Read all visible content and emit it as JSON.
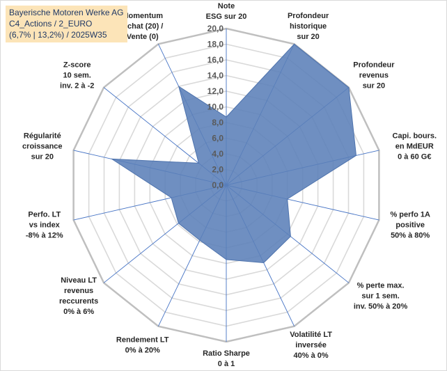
{
  "title_box": {
    "line1": "Bayerische Motoren Werke AG",
    "line2": "C4_Actions / 2_EURO",
    "line3": "(6,7% | 13,2%) / 2025W35"
  },
  "chart_data": {
    "type": "radar",
    "scale": {
      "min": 0,
      "max": 20,
      "step": 2
    },
    "tick_labels": [
      "0,0",
      "2,0",
      "4,0",
      "6,0",
      "8,0",
      "10,0",
      "12,0",
      "14,0",
      "16,0",
      "18,0",
      "20,0"
    ],
    "axes": [
      {
        "label": [
          "Note",
          "ESG sur 20"
        ],
        "value": 8.7
      },
      {
        "label": [
          "Profondeur",
          "historique",
          "sur 20"
        ],
        "value": 20.0
      },
      {
        "label": [
          "Profondeur",
          "revenus",
          "sur 20"
        ],
        "value": 20.0
      },
      {
        "label": [
          "Capi. bours.",
          "en MdEUR",
          "0 à 60 G€"
        ],
        "value": 17.0
      },
      {
        "label": [
          "% perfo 1A",
          "positive",
          "50% à 80%"
        ],
        "value": 8.0
      },
      {
        "label": [
          "% perte max.",
          "sur 1 sem.",
          "inv. 50% à 20%"
        ],
        "value": 10.5
      },
      {
        "label": [
          "Volatilité LT",
          "inversée",
          "40% à 0%"
        ],
        "value": 11.0
      },
      {
        "label": [
          "Ratio Sharpe",
          "0 à 1"
        ],
        "value": 9.5
      },
      {
        "label": [
          "Rendement LT",
          "0% à 20%"
        ],
        "value": 7.8
      },
      {
        "label": [
          "Niveau LT",
          "revenus",
          "reccurents",
          "0% à 6%"
        ],
        "value": 7.8
      },
      {
        "label": [
          "Perfo. LT",
          "vs index",
          "-8% à 12%"
        ],
        "value": 7.2
      },
      {
        "label": [
          "Régularité",
          "croissance",
          "sur 20"
        ],
        "value": 15.0
      },
      {
        "label": [
          "Z-score",
          "10 sem.",
          "inv. 2 à -2"
        ],
        "value": 4.5
      },
      {
        "label": [
          "Momentum",
          "Achat (20) /",
          "Vente (0)"
        ],
        "value": 14.0
      }
    ],
    "colors": {
      "fill": "#5b80b8",
      "stroke": "#4e73ad",
      "grid": "#d9d9d9",
      "spoke": "#4472c4"
    }
  }
}
